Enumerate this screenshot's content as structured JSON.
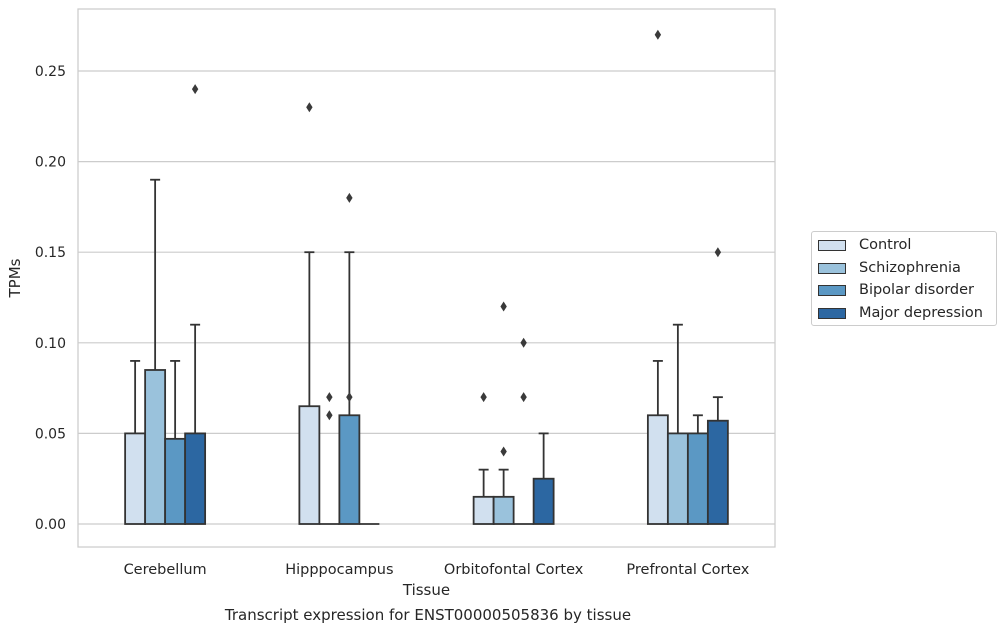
{
  "caption": "Transcript expression for ENST00000505836 by tissue",
  "chart_data": {
    "type": "bar",
    "xlabel": "Tissue",
    "ylabel": "TPMs",
    "ylim": [
      -0.013,
      0.285
    ],
    "yticks": [
      "0.00",
      "0.05",
      "0.10",
      "0.15",
      "0.20",
      "0.25"
    ],
    "grid": "horizontal",
    "legend_placement": "right",
    "categories": [
      "Cerebellum",
      "Hipppocampus",
      "Orbitofontal Cortex",
      "Prefrontal Cortex"
    ],
    "series": [
      {
        "name": "Control",
        "color": "#d1e0ef",
        "values": [
          0.05,
          0.065,
          0.015,
          0.06
        ],
        "whisker_upper": [
          0.09,
          0.15,
          0.03,
          0.09
        ],
        "outliers": [
          [],
          [
            0.23
          ],
          [
            0.07
          ],
          [
            0.27
          ]
        ]
      },
      {
        "name": "Schizophrenia",
        "color": "#9ac2dc",
        "values": [
          0.085,
          0.0,
          0.015,
          0.05
        ],
        "whisker_upper": [
          0.19,
          null,
          0.03,
          0.11
        ],
        "outliers": [
          [],
          [
            0.07,
            0.06
          ],
          [
            0.12,
            0.04
          ],
          []
        ]
      },
      {
        "name": "Bipolar disorder",
        "color": "#5b98c4",
        "values": [
          0.047,
          0.06,
          0.0,
          0.05
        ],
        "whisker_upper": [
          0.09,
          0.15,
          null,
          0.06
        ],
        "outliers": [
          [],
          [
            0.18,
            0.07
          ],
          [
            0.1,
            0.07
          ],
          []
        ]
      },
      {
        "name": "Major depression",
        "color": "#2c67a2",
        "values": [
          0.05,
          0.0,
          0.025,
          0.057
        ],
        "whisker_upper": [
          0.11,
          null,
          0.05,
          0.07
        ],
        "outliers": [
          [
            0.24
          ],
          [],
          [],
          [
            0.15
          ]
        ]
      }
    ]
  }
}
